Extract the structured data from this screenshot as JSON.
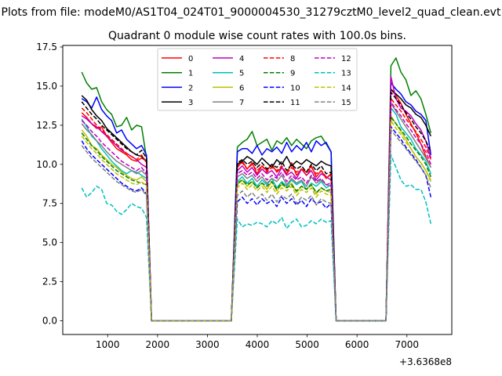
{
  "suptitle": "Plots from file: modeM0/AS1T04_024T01_9000004530_31279cztM0_level2_quad_clean.evt",
  "chart_data": {
    "type": "line",
    "title": "Quadrant 0 module wise count rates with 100.0s bins.",
    "xlabel": "",
    "ylabel": "",
    "x_offset_label": "+3.6368e8",
    "xlim": [
      100,
      7900
    ],
    "ylim": [
      -0.875,
      17.6
    ],
    "xticks": [
      1000,
      2000,
      3000,
      4000,
      5000,
      6000,
      7000
    ],
    "xtick_labels": [
      "1000",
      "2000",
      "3000",
      "4000",
      "5000",
      "6000",
      "7000"
    ],
    "yticks": [
      0,
      2.5,
      5,
      7.5,
      10,
      12.5,
      15,
      17.5
    ],
    "ytick_labels": [
      "0.0",
      "2.5",
      "5.0",
      "7.5",
      "10.0",
      "12.5",
      "15.0",
      "17.5"
    ],
    "legend_position": "upper center",
    "legend_columns": 4,
    "segments": [
      {
        "start": 480,
        "end": 1780
      },
      {
        "start": 3600,
        "end": 5480
      },
      {
        "start": 6680,
        "end": 7480
      }
    ],
    "gap_x": [
      1880,
      3480,
      5580,
      6580
    ],
    "series": [
      {
        "name": "0",
        "color": "#ff0000",
        "dash": "solid",
        "seg_values": [
          [
            13.3,
            13.0,
            12.6,
            12.3,
            12.4,
            11.8,
            11.4,
            11.0,
            10.8,
            10.6,
            10.3,
            10.2,
            10.4,
            10.2
          ],
          [
            9.8,
            10.2,
            9.7,
            10.1,
            9.4,
            9.9,
            9.6,
            10.0,
            9.5,
            9.8,
            9.4,
            10.1,
            9.3,
            9.7,
            9.5,
            9.9,
            9.2,
            9.6,
            9.1,
            9.4
          ],
          [
            14.8,
            14.4,
            13.9,
            13.2,
            12.6,
            12.0,
            11.3,
            10.5,
            9.8
          ]
        ]
      },
      {
        "name": "1",
        "color": "#008000",
        "dash": "solid",
        "seg_values": [
          [
            15.9,
            15.2,
            14.8,
            14.9,
            14.0,
            13.5,
            13.2,
            12.4,
            12.5,
            13.0,
            12.2,
            12.5,
            12.4,
            10.4
          ],
          [
            11.1,
            11.4,
            11.6,
            12.1,
            11.2,
            11.4,
            11.6,
            10.9,
            11.5,
            11.3,
            11.7,
            11.2,
            11.6,
            11.3,
            11.0,
            11.5,
            11.7,
            11.8,
            11.3,
            10.8
          ],
          [
            16.3,
            16.8,
            15.9,
            15.4,
            14.4,
            14.7,
            14.2,
            13.2,
            12.0
          ]
        ]
      },
      {
        "name": "2",
        "color": "#0000ff",
        "dash": "solid",
        "seg_values": [
          [
            14.2,
            14.0,
            13.6,
            14.3,
            13.5,
            13.1,
            12.8,
            12.0,
            12.2,
            11.6,
            11.3,
            11.0,
            11.2,
            10.6
          ],
          [
            10.8,
            11.0,
            11.0,
            10.7,
            11.2,
            10.6,
            11.0,
            10.8,
            11.1,
            10.7,
            11.4,
            10.8,
            11.2,
            10.9,
            11.4,
            10.8,
            11.5,
            11.2,
            11.4,
            10.8
          ],
          [
            15.2,
            14.8,
            14.5,
            14.0,
            13.8,
            13.4,
            13.2,
            12.8,
            10.6
          ]
        ]
      },
      {
        "name": "3",
        "color": "#000000",
        "dash": "solid",
        "seg_values": [
          [
            14.4,
            14.1,
            13.5,
            13.1,
            12.8,
            12.3,
            12.0,
            11.7,
            11.4,
            11.1,
            10.8,
            10.6,
            10.5,
            10.2
          ],
          [
            10.0,
            10.2,
            10.5,
            10.3,
            10.0,
            10.4,
            10.1,
            9.8,
            10.3,
            10.0,
            10.5,
            9.9,
            10.2,
            10.0,
            10.3,
            10.1,
            9.9,
            10.2,
            10.0,
            9.9
          ],
          [
            14.8,
            14.5,
            14.2,
            13.8,
            13.6,
            13.2,
            13.0,
            12.5,
            11.8
          ]
        ]
      },
      {
        "name": "4",
        "color": "#bf00bf",
        "dash": "solid",
        "seg_values": [
          [
            13.1,
            12.9,
            12.6,
            12.4,
            12.1,
            11.8,
            11.5,
            11.2,
            10.9,
            10.7,
            10.5,
            10.3,
            10.0,
            9.8
          ],
          [
            9.6,
            9.9,
            9.5,
            9.8,
            9.3,
            9.7,
            9.4,
            9.6,
            9.2,
            9.8,
            9.3,
            9.5,
            9.1,
            9.7,
            9.3,
            9.6,
            9.0,
            9.4,
            9.2,
            9.0
          ],
          [
            15.6,
            14.2,
            13.6,
            13.4,
            13.1,
            12.6,
            12.2,
            11.5,
            10.4
          ]
        ]
      },
      {
        "name": "5",
        "color": "#00bfbf",
        "dash": "solid",
        "seg_values": [
          [
            12.9,
            12.4,
            11.8,
            11.5,
            11.0,
            10.6,
            10.2,
            9.9,
            9.6,
            9.4,
            9.6,
            9.5,
            9.3,
            9.1
          ],
          [
            8.9,
            9.2,
            8.8,
            9.1,
            8.6,
            9.0,
            8.7,
            9.1,
            8.5,
            8.9,
            8.6,
            9.0,
            8.7,
            8.9,
            8.4,
            8.8,
            8.6,
            8.9,
            8.5,
            8.7
          ],
          [
            13.6,
            13.2,
            12.4,
            12.0,
            11.6,
            11.0,
            10.6,
            10.2,
            9.4
          ]
        ]
      },
      {
        "name": "6",
        "color": "#bfbf00",
        "dash": "solid",
        "seg_values": [
          [
            12.2,
            11.8,
            11.2,
            11.0,
            10.6,
            10.3,
            10.0,
            9.8,
            9.5,
            9.3,
            9.1,
            9.0,
            9.2,
            8.9
          ],
          [
            8.7,
            9.0,
            8.6,
            8.9,
            8.5,
            8.8,
            8.4,
            8.9,
            8.3,
            8.7,
            8.5,
            8.8,
            8.2,
            8.6,
            8.4,
            8.7,
            8.1,
            8.5,
            8.3,
            8.2
          ],
          [
            13.1,
            12.6,
            12.1,
            11.6,
            11.0,
            10.5,
            10.1,
            9.6,
            9.0
          ]
        ]
      },
      {
        "name": "7",
        "color": "#808080",
        "dash": "solid",
        "seg_values": [
          [
            12.6,
            12.2,
            11.9,
            11.5,
            11.2,
            10.8,
            10.5,
            10.2,
            10.0,
            9.8,
            9.6,
            9.4,
            9.6,
            9.3
          ],
          [
            9.2,
            9.4,
            9.1,
            9.3,
            8.9,
            9.2,
            8.8,
            9.1,
            8.9,
            9.3,
            8.7,
            9.1,
            8.8,
            9.0,
            8.6,
            9.2,
            8.8,
            9.0,
            8.7,
            8.6
          ],
          [
            13.9,
            13.4,
            12.9,
            12.4,
            11.9,
            11.4,
            10.9,
            10.4,
            9.8
          ]
        ]
      },
      {
        "name": "8",
        "color": "#ff0000",
        "dash": "dashed",
        "seg_values": [
          [
            13.6,
            13.3,
            12.9,
            12.5,
            12.2,
            11.9,
            11.6,
            11.3,
            11.0,
            10.7,
            10.5,
            10.3,
            10.6,
            10.1
          ],
          [
            9.9,
            10.1,
            9.7,
            10.0,
            9.6,
            9.9,
            9.5,
            9.8,
            9.6,
            9.9,
            9.4,
            9.8,
            9.5,
            9.7,
            9.3,
            9.8,
            9.4,
            9.6,
            9.2,
            9.3
          ],
          [
            14.2,
            13.8,
            13.4,
            12.9,
            12.5,
            12.1,
            11.6,
            11.1,
            10.3
          ]
        ]
      },
      {
        "name": "9",
        "color": "#008000",
        "dash": "dashed",
        "seg_values": [
          [
            12.0,
            11.6,
            11.2,
            10.9,
            10.5,
            10.2,
            9.9,
            9.6,
            9.4,
            9.2,
            9.0,
            8.9,
            8.8,
            8.7
          ],
          [
            8.8,
            9.0,
            8.7,
            8.9,
            8.5,
            8.8,
            8.6,
            8.9,
            8.4,
            8.8,
            8.5,
            8.7,
            8.3,
            8.6,
            8.4,
            8.7,
            8.2,
            8.5,
            8.3,
            8.4
          ],
          [
            13.0,
            12.6,
            12.2,
            11.8,
            11.3,
            10.9,
            10.5,
            10.0,
            9.2
          ]
        ]
      },
      {
        "name": "10",
        "color": "#0000ff",
        "dash": "dashed",
        "seg_values": [
          [
            11.5,
            11.0,
            10.6,
            10.3,
            10.0,
            9.7,
            9.4,
            9.1,
            8.8,
            8.6,
            8.4,
            8.3,
            8.5,
            8.1
          ],
          [
            7.6,
            7.9,
            7.5,
            7.8,
            7.4,
            7.8,
            7.5,
            7.7,
            7.3,
            7.9,
            7.5,
            7.8,
            7.4,
            7.7,
            7.3,
            7.8,
            7.5,
            7.6,
            7.2,
            7.5
          ],
          [
            12.4,
            12.0,
            11.6,
            11.1,
            10.7,
            10.3,
            9.8,
            9.3,
            7.9
          ]
        ]
      },
      {
        "name": "11",
        "color": "#000000",
        "dash": "dashed",
        "seg_values": [
          [
            14.0,
            13.6,
            13.2,
            12.9,
            12.5,
            12.2,
            11.9,
            11.6,
            11.3,
            11.0,
            10.8,
            10.6,
            10.9,
            10.4
          ],
          [
            10.1,
            10.3,
            10.0,
            10.2,
            9.8,
            10.1,
            9.7,
            10.0,
            9.8,
            10.2,
            9.6,
            10.0,
            9.7,
            9.9,
            9.5,
            10.0,
            9.6,
            9.9,
            9.4,
            9.5
          ],
          [
            14.6,
            14.2,
            13.8,
            13.3,
            12.9,
            12.4,
            12.0,
            11.5,
            10.8
          ]
        ]
      },
      {
        "name": "12",
        "color": "#bf00bf",
        "dash": "dashed",
        "seg_values": [
          [
            12.8,
            12.5,
            12.1,
            11.8,
            11.4,
            11.1,
            10.8,
            10.5,
            10.2,
            10.0,
            9.8,
            9.6,
            9.8,
            9.4
          ],
          [
            9.4,
            9.6,
            9.3,
            9.5,
            9.1,
            9.4,
            9.0,
            9.3,
            9.1,
            9.5,
            8.9,
            9.3,
            9.0,
            9.2,
            8.8,
            9.3,
            8.9,
            9.1,
            8.7,
            8.8
          ],
          [
            14.0,
            13.5,
            13.1,
            12.6,
            12.2,
            11.7,
            11.3,
            10.8,
            10.0
          ]
        ]
      },
      {
        "name": "13",
        "color": "#00bfbf",
        "dash": "dashed",
        "seg_values": [
          [
            8.5,
            7.9,
            8.2,
            8.6,
            8.4,
            7.5,
            7.4,
            7.0,
            6.8,
            7.1,
            7.5,
            7.3,
            7.2,
            6.6
          ],
          [
            6.5,
            6.0,
            6.2,
            6.1,
            6.3,
            6.2,
            6.0,
            6.4,
            6.2,
            6.6,
            5.9,
            6.3,
            6.5,
            6.0,
            6.1,
            6.4,
            6.2,
            6.5,
            6.3,
            6.4
          ],
          [
            10.6,
            9.8,
            9.0,
            8.6,
            8.7,
            8.4,
            8.4,
            7.6,
            6.2
          ]
        ]
      },
      {
        "name": "14",
        "color": "#bfbf00",
        "dash": "dashed",
        "seg_values": [
          [
            11.8,
            11.4,
            11.0,
            10.7,
            10.3,
            10.0,
            9.7,
            9.4,
            9.2,
            9.0,
            8.8,
            8.7,
            8.9,
            8.6
          ],
          [
            8.5,
            8.8,
            8.4,
            8.7,
            8.3,
            8.6,
            8.2,
            8.6,
            8.1,
            8.5,
            8.3,
            8.6,
            8.0,
            8.4,
            8.2,
            8.5,
            7.9,
            8.3,
            8.1,
            8.0
          ],
          [
            12.8,
            12.3,
            11.9,
            11.4,
            11.0,
            10.5,
            10.1,
            9.6,
            8.9
          ]
        ]
      },
      {
        "name": "15",
        "color": "#808080",
        "dash": "dashed",
        "seg_values": [
          [
            11.2,
            10.8,
            10.4,
            10.1,
            9.8,
            9.5,
            9.2,
            8.9,
            8.7,
            8.5,
            8.3,
            8.2,
            8.4,
            8.0
          ],
          [
            8.0,
            8.3,
            7.9,
            8.2,
            7.8,
            8.1,
            7.7,
            8.1,
            7.6,
            8.0,
            7.8,
            8.1,
            7.5,
            7.9,
            7.7,
            8.0,
            7.4,
            7.8,
            7.6,
            7.5
          ],
          [
            12.2,
            11.8,
            11.4,
            11.0,
            10.6,
            10.2,
            9.8,
            9.3,
            8.5
          ]
        ]
      }
    ]
  }
}
